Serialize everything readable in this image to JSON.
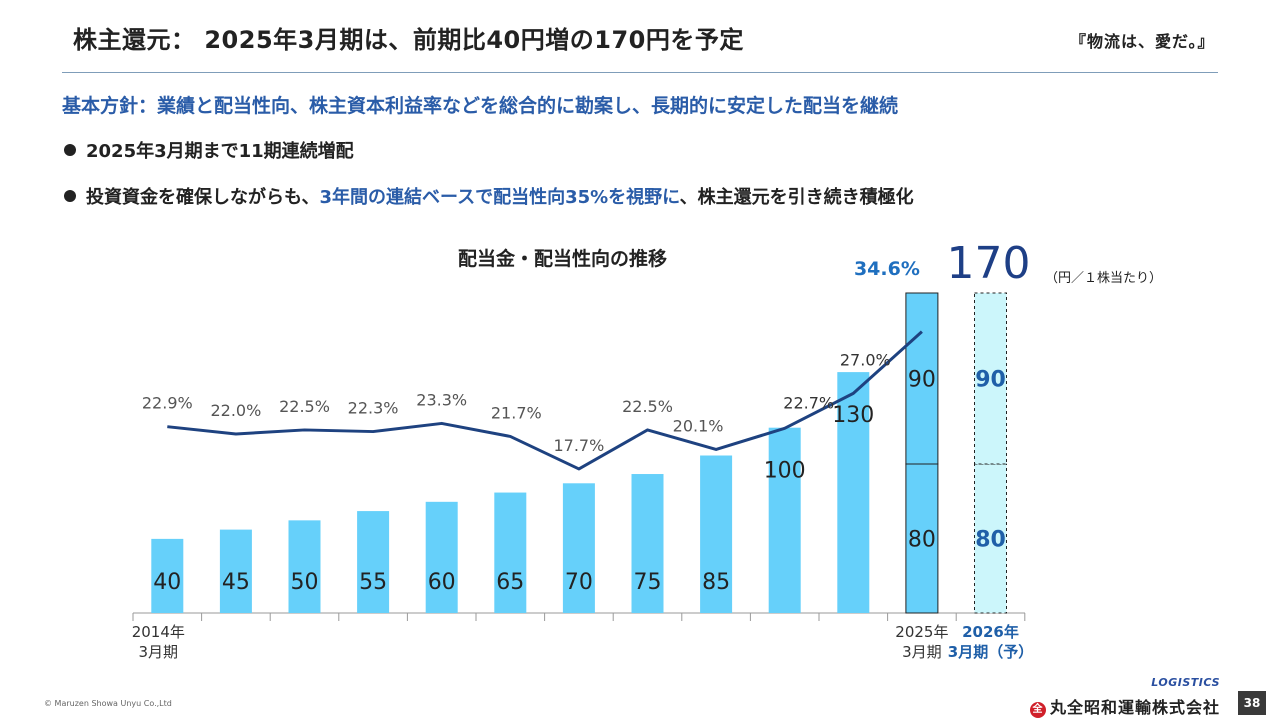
{
  "header": {
    "title": "株主還元： 2025年3月期は、前期比40円増の170円を予定",
    "slogan": "『物流は、愛だ。』"
  },
  "policy": "基本方針：業績と配当性向、株主資本利益率などを総合的に勘案し、長期的に安定した配当を継続",
  "bullets": {
    "b1": "2025年3月期まで11期連続増配",
    "b2_pre": "投資資金を確保しながらも、",
    "b2_hl": "3年間の連結ベースで配当性向35%を視野に",
    "b2_post": "、株主還元を引き続き積極化"
  },
  "chart_title": "配当金・配当性向の推移",
  "chart_data": {
    "type": "bar",
    "title": "配当金・配当性向の推移",
    "unit": "（円／１株当たり）",
    "x_labels": [
      {
        "lines": [
          "2014年",
          "3月期"
        ]
      },
      {
        "lines": []
      },
      {
        "lines": []
      },
      {
        "lines": []
      },
      {
        "lines": []
      },
      {
        "lines": []
      },
      {
        "lines": []
      },
      {
        "lines": []
      },
      {
        "lines": []
      },
      {
        "lines": []
      },
      {
        "lines": []
      },
      {
        "lines": [
          "2025年",
          "3月期"
        ]
      },
      {
        "lines": [
          "2026年",
          "3月期（予）"
        ]
      }
    ],
    "dividends": [
      40,
      45,
      50,
      55,
      60,
      65,
      70,
      75,
      85,
      100,
      130,
      null,
      null
    ],
    "stacked": {
      "lower": [
        null,
        null,
        null,
        null,
        null,
        null,
        null,
        null,
        null,
        null,
        null,
        80,
        80
      ],
      "upper": [
        null,
        null,
        null,
        null,
        null,
        null,
        null,
        null,
        null,
        null,
        null,
        90,
        90
      ],
      "total_label": "170"
    },
    "payout_ratio": {
      "values": [
        22.9,
        22.0,
        22.5,
        22.3,
        23.3,
        21.7,
        17.7,
        22.5,
        20.1,
        22.7,
        27.0,
        34.6
      ],
      "labels": [
        "22.9%",
        "22.0%",
        "22.5%",
        "22.3%",
        "23.3%",
        "21.7%",
        "17.7%",
        "22.5%",
        "20.1%",
        "22.7%",
        "27.0%",
        "34.6%"
      ]
    },
    "colors": {
      "bar": "#66d0fa",
      "bar_2025": "#66d0fa",
      "bar_forecast": "#ccf6fb",
      "line": "#1e4280",
      "highlight_text": "#1f6fbf",
      "forecast_text": "#1f5fa8"
    }
  },
  "footer": {
    "copyright": "© Maruzen Showa Unyu Co.,Ltd",
    "logo_mark": "LOGISTICS",
    "company": "丸全昭和運輸株式会社",
    "page": "38"
  }
}
